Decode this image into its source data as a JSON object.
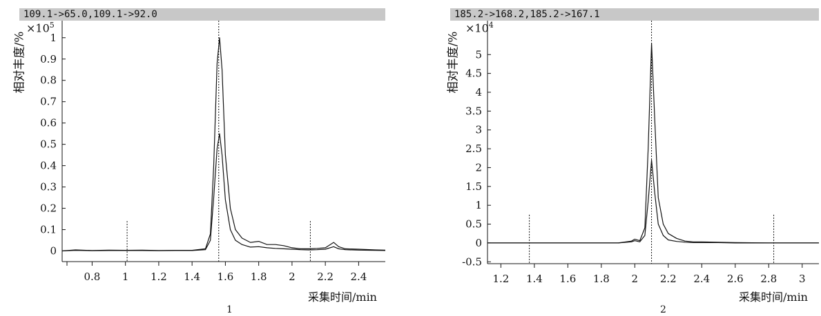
{
  "chart_data": [
    {
      "type": "line",
      "header": "109.1->65.0,109.1->92.0",
      "ylabel": "相对丰度/%",
      "multiplier_base": "×10",
      "multiplier_exp": "5",
      "xlabel": "采集时间/min",
      "caption": "1",
      "xlim": [
        0.62,
        2.56
      ],
      "ylim": [
        -0.05,
        1.08
      ],
      "x_ticks": [
        0.8,
        1.0,
        1.2,
        1.4,
        1.6,
        1.8,
        2.0,
        2.2,
        2.4
      ],
      "x_tick_labels": [
        "0.8",
        "1",
        "1.2",
        "1.4",
        "1.6",
        "1.8",
        "2",
        "2.2",
        "2.4"
      ],
      "y_ticks": [
        0,
        0.1,
        0.2,
        0.3,
        0.4,
        0.5,
        0.6,
        0.7,
        0.8,
        0.9,
        1
      ],
      "y_tick_labels": [
        "0",
        "0.1",
        "0.2",
        "0.3",
        "0.4",
        "0.5",
        "0.6",
        "0.7",
        "0.8",
        "0.9",
        "1"
      ],
      "vlines": [
        {
          "x": 1.01,
          "y_top": 0.14
        },
        {
          "x": 1.56,
          "y_top": 1.08
        },
        {
          "x": 2.11,
          "y_top": 0.14
        }
      ],
      "series": [
        {
          "x": [
            0.62,
            0.7,
            0.8,
            0.9,
            1.0,
            1.1,
            1.2,
            1.3,
            1.4,
            1.48,
            1.51,
            1.53,
            1.55,
            1.565,
            1.58,
            1.6,
            1.63,
            1.66,
            1.7,
            1.75,
            1.8,
            1.85,
            1.9,
            1.95,
            2.0,
            2.05,
            2.1,
            2.15,
            2.2,
            2.25,
            2.28,
            2.32,
            2.4,
            2.5,
            2.56
          ],
          "values": [
            0.0,
            0.005,
            0.002,
            0.004,
            0.003,
            0.004,
            0.002,
            0.003,
            0.003,
            0.01,
            0.08,
            0.4,
            0.88,
            1.0,
            0.85,
            0.45,
            0.2,
            0.1,
            0.06,
            0.04,
            0.045,
            0.03,
            0.03,
            0.025,
            0.015,
            0.01,
            0.01,
            0.012,
            0.015,
            0.04,
            0.02,
            0.01,
            0.008,
            0.005,
            0.004
          ]
        },
        {
          "x": [
            0.62,
            0.7,
            0.8,
            0.9,
            1.0,
            1.1,
            1.2,
            1.3,
            1.4,
            1.48,
            1.51,
            1.53,
            1.55,
            1.565,
            1.58,
            1.6,
            1.63,
            1.66,
            1.7,
            1.75,
            1.8,
            1.85,
            1.9,
            1.95,
            2.0,
            2.05,
            2.1,
            2.15,
            2.2,
            2.25,
            2.28,
            2.32,
            2.4,
            2.5,
            2.56
          ],
          "values": [
            0.0,
            0.003,
            0.001,
            0.002,
            0.002,
            0.002,
            0.001,
            0.002,
            0.002,
            0.006,
            0.05,
            0.25,
            0.48,
            0.55,
            0.45,
            0.24,
            0.1,
            0.05,
            0.03,
            0.018,
            0.02,
            0.015,
            0.012,
            0.01,
            0.008,
            0.006,
            0.005,
            0.006,
            0.008,
            0.02,
            0.01,
            0.006,
            0.004,
            0.003,
            0.002
          ]
        }
      ]
    },
    {
      "type": "line",
      "header": "185.2->168.2,185.2->167.1",
      "ylabel": "相对丰度/%",
      "multiplier_base": "×10",
      "multiplier_exp": "4",
      "xlabel": "采集时间/min",
      "caption": "2",
      "xlim": [
        1.12,
        3.1
      ],
      "ylim": [
        -0.55,
        5.9
      ],
      "x_ticks": [
        1.2,
        1.4,
        1.6,
        1.8,
        2.0,
        2.2,
        2.4,
        2.6,
        2.8,
        3.0
      ],
      "x_tick_labels": [
        "1.2",
        "1.4",
        "1.6",
        "1.8",
        "2",
        "2.2",
        "2.4",
        "2.6",
        "2.8",
        "3"
      ],
      "y_ticks": [
        -0.5,
        0,
        0.5,
        1,
        1.5,
        2,
        2.5,
        3,
        3.5,
        4,
        4.5,
        5
      ],
      "y_tick_labels": [
        "-0.5",
        "0",
        "0.5",
        "1",
        "1.5",
        "2",
        "2.5",
        "3",
        "3.5",
        "4",
        "4.5",
        "5"
      ],
      "vlines": [
        {
          "x": 1.37,
          "y_top": 0.75
        },
        {
          "x": 2.1,
          "y_top": 5.9
        },
        {
          "x": 2.83,
          "y_top": 0.75
        }
      ],
      "series": [
        {
          "x": [
            1.12,
            1.5,
            1.9,
            1.98,
            2.0,
            2.03,
            2.06,
            2.08,
            2.1,
            2.12,
            2.14,
            2.17,
            2.2,
            2.25,
            2.3,
            2.35,
            2.4,
            2.5,
            2.6,
            2.8,
            3.1
          ],
          "values": [
            0.0,
            0.0,
            0.0,
            0.05,
            0.1,
            0.06,
            0.4,
            2.5,
            5.3,
            3.2,
            1.2,
            0.5,
            0.25,
            0.12,
            0.05,
            0.03,
            0.03,
            0.02,
            0.01,
            0.0,
            0.0
          ]
        },
        {
          "x": [
            1.12,
            1.5,
            1.9,
            1.98,
            2.0,
            2.03,
            2.06,
            2.08,
            2.1,
            2.12,
            2.14,
            2.17,
            2.2,
            2.25,
            2.3,
            2.35,
            2.4,
            2.5,
            2.6,
            2.8,
            3.1
          ],
          "values": [
            0.0,
            0.0,
            0.0,
            0.03,
            0.06,
            0.03,
            0.2,
            1.1,
            2.2,
            1.3,
            0.5,
            0.2,
            0.08,
            0.04,
            0.02,
            0.01,
            0.01,
            0.01,
            0.0,
            0.0,
            0.0
          ]
        }
      ]
    }
  ]
}
